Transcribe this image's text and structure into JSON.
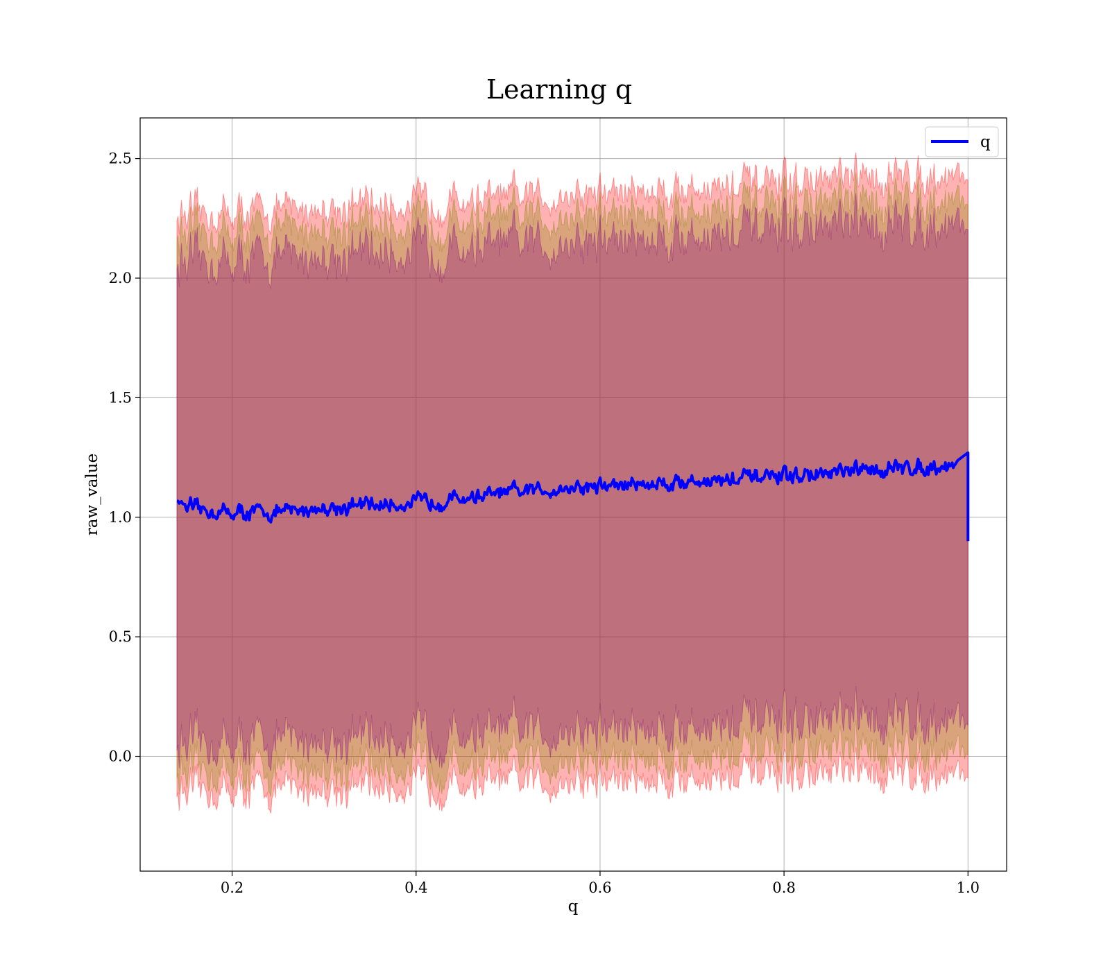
{
  "chart_data": {
    "type": "line",
    "title": "Learning q",
    "xlabel": "q",
    "ylabel": "raw_value",
    "xlim": [
      0.1,
      1.042
    ],
    "ylim": [
      -0.48,
      2.67
    ],
    "xticks": [
      0.2,
      0.4,
      0.6,
      0.8,
      1.0
    ],
    "xtick_labels": [
      "0.2",
      "0.4",
      "0.6",
      "0.8",
      "1.0"
    ],
    "yticks": [
      0.0,
      0.5,
      1.0,
      1.5,
      2.0,
      2.5
    ],
    "ytick_labels": [
      "0.0",
      "0.5",
      "1.0",
      "1.5",
      "2.0",
      "2.5"
    ],
    "grid": true,
    "legend": {
      "position": "upper-right",
      "entries": [
        "q"
      ]
    },
    "x_range": [
      0.14,
      1.0
    ],
    "series": [
      {
        "name": "q",
        "color": "#0000ff",
        "x": [
          0.14,
          0.16,
          0.2,
          0.25,
          0.3,
          0.35,
          0.4,
          0.45,
          0.5,
          0.55,
          0.6,
          0.65,
          0.7,
          0.75,
          0.8,
          0.85,
          0.9,
          0.95,
          0.99,
          1.0
        ],
        "y": [
          1.07,
          1.03,
          1.02,
          1.02,
          1.04,
          1.05,
          1.06,
          1.08,
          1.1,
          1.12,
          1.13,
          1.14,
          1.15,
          1.16,
          1.17,
          1.18,
          1.2,
          1.21,
          1.22,
          0.9
        ]
      }
    ],
    "bands": [
      {
        "color": "#ff0000",
        "opacity": 0.3,
        "x": [
          0.14,
          1.0
        ],
        "upper": [
          2.26,
          2.44
        ],
        "lower": [
          -0.15,
          -0.06
        ]
      },
      {
        "color": "#808000",
        "opacity": 0.3,
        "x": [
          0.14,
          1.0
        ],
        "upper": [
          2.18,
          2.34
        ],
        "lower": [
          -0.07,
          0.04
        ]
      },
      {
        "color": "#800080",
        "opacity": 0.3,
        "x": [
          0.14,
          1.0
        ],
        "upper": [
          2.06,
          2.24
        ],
        "lower": [
          0.05,
          0.17
        ]
      }
    ]
  }
}
